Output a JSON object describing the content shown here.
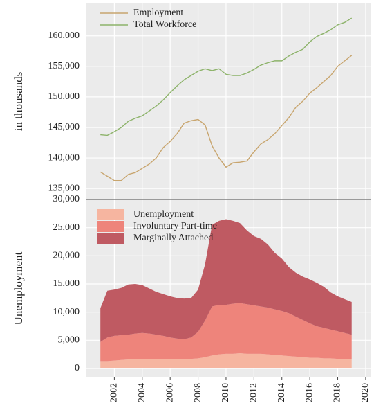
{
  "chart_data": [
    {
      "type": "line",
      "ylabel": "in thousands",
      "x": [
        2001,
        2001.5,
        2002,
        2002.5,
        2003,
        2003.5,
        2004,
        2004.5,
        2005,
        2005.5,
        2006,
        2006.5,
        2007,
        2007.5,
        2008,
        2008.5,
        2009,
        2009.5,
        2010,
        2010.5,
        2011,
        2011.5,
        2012,
        2012.5,
        2013,
        2013.5,
        2014,
        2014.5,
        2015,
        2015.5,
        2016,
        2016.5,
        2017,
        2017.5,
        2018,
        2018.5,
        2019
      ],
      "series": [
        {
          "name": "Employment",
          "color": "#c8a56e",
          "values": [
            137700,
            137000,
            136300,
            136300,
            137300,
            137600,
            138300,
            139000,
            140000,
            141700,
            142700,
            144000,
            145700,
            146100,
            146300,
            145400,
            142000,
            140000,
            138500,
            139200,
            139300,
            139500,
            141000,
            142300,
            143000,
            144000,
            145300,
            146600,
            148300,
            149300,
            150600,
            151500,
            152500,
            153500,
            155000,
            155900,
            156800
          ]
        },
        {
          "name": "Total Workforce",
          "color": "#8db36a",
          "values": [
            143800,
            143700,
            144300,
            145000,
            146000,
            146500,
            146900,
            147700,
            148500,
            149500,
            150700,
            151800,
            152800,
            153500,
            154200,
            154600,
            154300,
            154600,
            153700,
            153500,
            153500,
            153900,
            154500,
            155200,
            155600,
            155900,
            155900,
            156700,
            157300,
            157800,
            159000,
            159900,
            160400,
            161000,
            161800,
            162200,
            162900
          ]
        }
      ],
      "xlim": [
        2000,
        2020.4
      ],
      "xticks": [
        2002,
        2004,
        2006,
        2008,
        2010,
        2012,
        2014,
        2016,
        2018,
        2020
      ],
      "ylim": [
        133200,
        165300
      ],
      "yticks": [
        {
          "value": 135000,
          "label": "135,000"
        },
        {
          "value": 140000,
          "label": "140,000"
        },
        {
          "value": 145000,
          "label": "145,000"
        },
        {
          "value": 150000,
          "label": "150,000"
        },
        {
          "value": 155000,
          "label": "155,000"
        },
        {
          "value": 160000,
          "label": "160,000"
        }
      ],
      "grid": true,
      "legend": "upper left"
    },
    {
      "type": "stacked_area",
      "ylabel": "Unemployment",
      "x": [
        2001,
        2001.5,
        2002,
        2002.5,
        2003,
        2003.5,
        2004,
        2004.5,
        2005,
        2005.5,
        2006,
        2006.5,
        2007,
        2007.5,
        2008,
        2008.5,
        2009,
        2009.5,
        2010,
        2010.5,
        2011,
        2011.5,
        2012,
        2012.5,
        2013,
        2013.5,
        2014,
        2014.5,
        2015,
        2015.5,
        2016,
        2016.5,
        2017,
        2017.5,
        2018,
        2018.5,
        2019
      ],
      "series": [
        {
          "name": "Unemployment",
          "color": "#f6b5a0",
          "values": [
            1300,
            1300,
            1400,
            1500,
            1600,
            1600,
            1700,
            1700,
            1700,
            1700,
            1600,
            1600,
            1600,
            1700,
            1800,
            2000,
            2300,
            2500,
            2600,
            2600,
            2700,
            2600,
            2600,
            2600,
            2500,
            2400,
            2300,
            2200,
            2100,
            2000,
            1900,
            1900,
            1800,
            1800,
            1700,
            1700,
            1700
          ]
        },
        {
          "name": "Involuntary Part-time",
          "color": "#ee847b",
          "values": [
            3400,
            4200,
            4400,
            4400,
            4400,
            4600,
            4600,
            4500,
            4300,
            4100,
            3900,
            3700,
            3600,
            3800,
            4700,
            6500,
            8700,
            8800,
            8700,
            8900,
            8900,
            8800,
            8600,
            8400,
            8300,
            8100,
            7900,
            7600,
            7100,
            6600,
            6100,
            5600,
            5400,
            5100,
            4900,
            4600,
            4300
          ]
        },
        {
          "name": "Marginally Attached",
          "color": "#bf5a62",
          "values": [
            6000,
            8300,
            8200,
            8400,
            8900,
            8800,
            8500,
            8000,
            7600,
            7400,
            7300,
            7200,
            7200,
            7000,
            7500,
            10000,
            14500,
            14900,
            15200,
            14700,
            14200,
            13100,
            12300,
            12000,
            11200,
            10000,
            9300,
            8200,
            7800,
            7700,
            7800,
            7700,
            7300,
            6600,
            6200,
            6000,
            5800
          ]
        }
      ],
      "xlim": [
        2000,
        2020.4
      ],
      "xticks": [
        2002,
        2004,
        2006,
        2008,
        2010,
        2012,
        2014,
        2016,
        2018,
        2020
      ],
      "ylim": [
        -1600,
        30000
      ],
      "yticks": [
        0,
        {
          "value": 5000,
          "label": "5,000"
        },
        {
          "value": 10000,
          "label": "10,000"
        },
        {
          "value": 15000,
          "label": "15,000"
        },
        {
          "value": 20000,
          "label": "20,000"
        },
        {
          "value": 25000,
          "label": "25,000"
        },
        {
          "value": 30000,
          "label": "30,000"
        }
      ],
      "grid": true,
      "legend": "upper left"
    }
  ]
}
